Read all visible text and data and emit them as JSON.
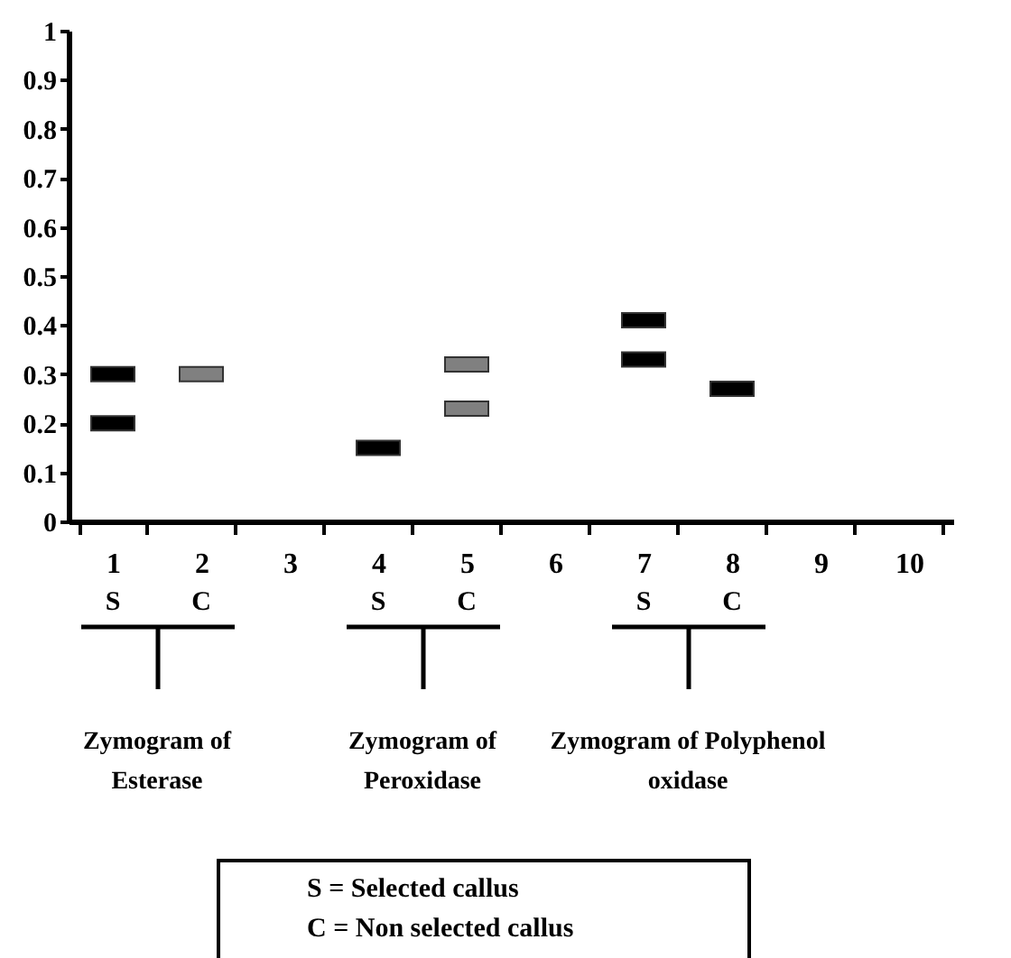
{
  "chart_data": {
    "type": "scatter",
    "marker": "square",
    "categories": [
      "1",
      "2",
      "3",
      "4",
      "5",
      "6",
      "7",
      "8",
      "9",
      "10"
    ],
    "ylim": [
      0,
      1
    ],
    "yticks": [
      0,
      0.1,
      0.2,
      0.3,
      0.4,
      0.5,
      0.6,
      0.7,
      0.8,
      0.9,
      1
    ],
    "series": [
      {
        "color": "#000000",
        "x": [
          "1",
          "1",
          "4",
          "7",
          "7",
          "8"
        ],
        "values": [
          0.3,
          0.2,
          0.15,
          0.41,
          0.33,
          0.27
        ]
      },
      {
        "color": "#808080",
        "x": [
          "2",
          "5",
          "5"
        ],
        "values": [
          0.3,
          0.32,
          0.23
        ]
      }
    ],
    "annotations": [
      "S",
      "C",
      "S",
      "C",
      "S",
      "C",
      "Zymogram of Esterase",
      "Zymogram of Peroxidase",
      "Zymogram of Polyphenol oxidase",
      "S = Selected callus",
      "C = Non selected callus"
    ]
  }
}
